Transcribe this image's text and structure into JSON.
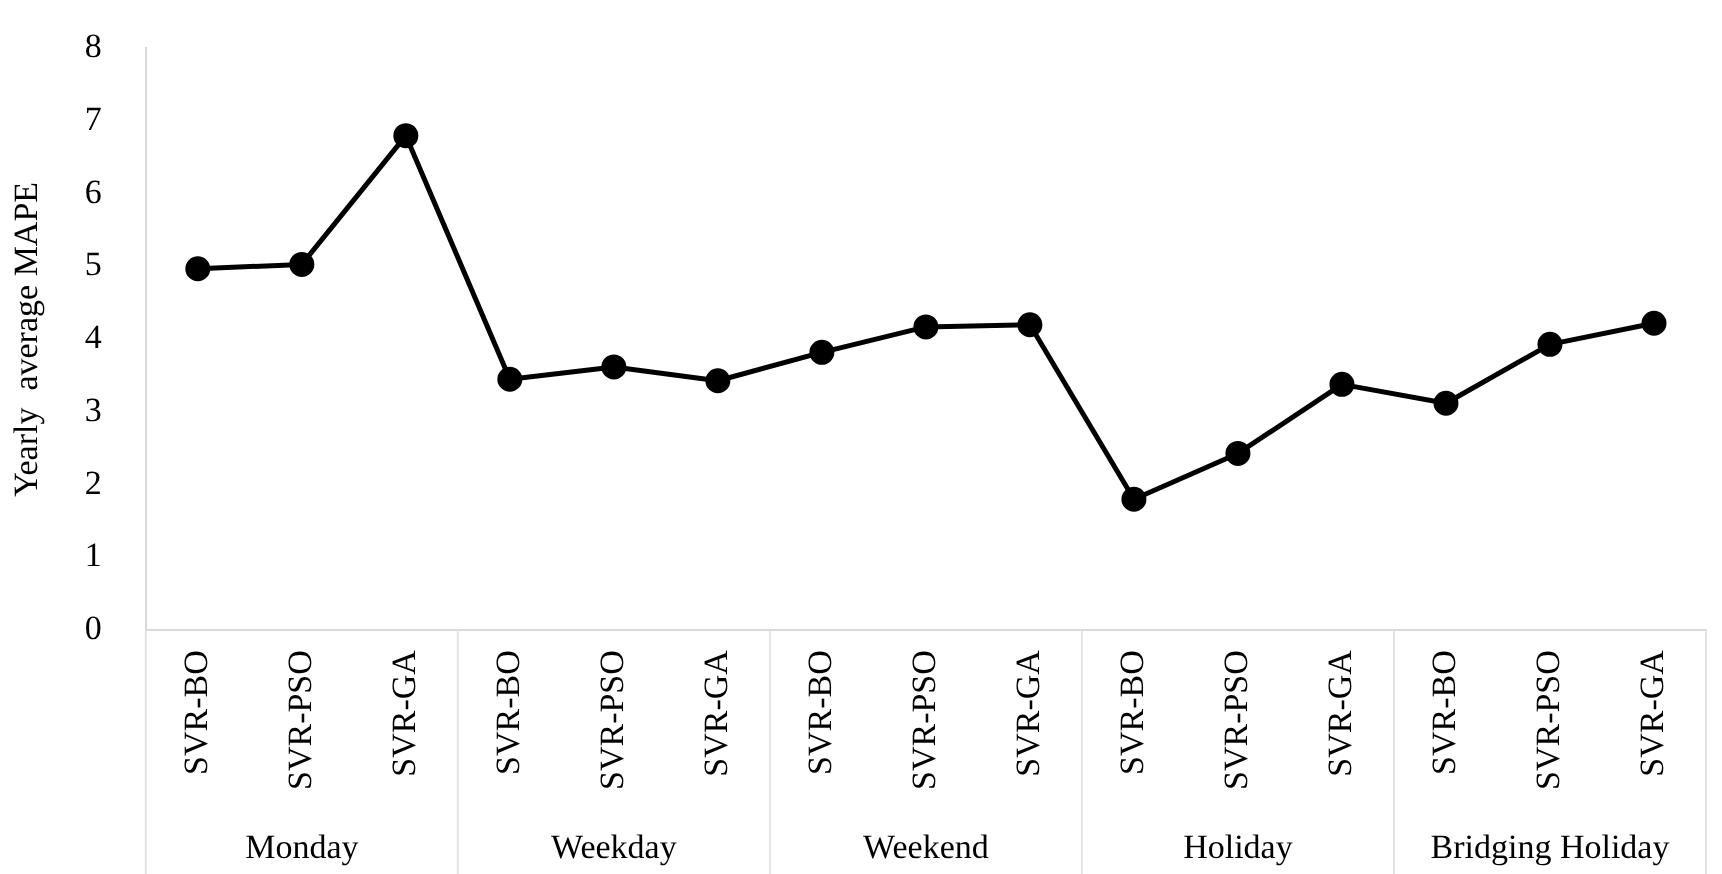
{
  "chart_data": {
    "type": "line",
    "ylabel": "Yearly  average MAPE",
    "categories": [
      "SVR-BO",
      "SVR-PSO",
      "SVR-GA",
      "SVR-BO",
      "SVR-PSO",
      "SVR-GA",
      "SVR-BO",
      "SVR-PSO",
      "SVR-GA",
      "SVR-BO",
      "SVR-PSO",
      "SVR-GA",
      "SVR-BO",
      "SVR-PSO",
      "SVR-GA"
    ],
    "values": [
      4.97,
      5.03,
      6.8,
      3.45,
      3.62,
      3.43,
      3.82,
      4.17,
      4.2,
      1.8,
      2.43,
      3.38,
      3.12,
      3.93,
      4.22
    ],
    "color": "#000000",
    "marker": "circle",
    "line_style": "solid",
    "ylim": [
      0,
      8
    ],
    "yticks": [
      0,
      1,
      2,
      3,
      4,
      5,
      6,
      7,
      8
    ],
    "grid": false,
    "legend": false,
    "annotations": [
      "Monday",
      "Weekday",
      "Weekend",
      "Holiday",
      "Bridging Holiday"
    ]
  }
}
